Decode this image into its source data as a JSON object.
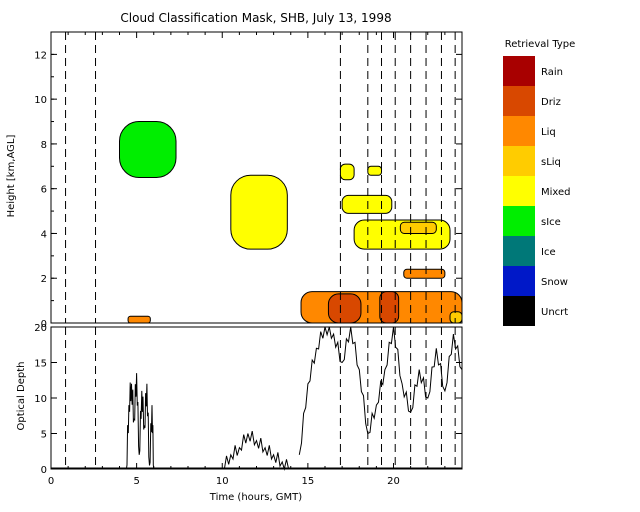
{
  "chart_data": [
    {
      "type": "heatmap",
      "title": "Cloud Classification Mask, SHB, July 13, 1998",
      "ylabel": "Height [km,AGL]",
      "xlim": [
        0,
        24
      ],
      "ylim": [
        0,
        13
      ],
      "yticks": [
        "0",
        "2",
        "4",
        "6",
        "8",
        "10",
        "12"
      ],
      "dashed_lines_x": [
        0.85,
        2.6,
        16.9,
        18.5,
        19.3,
        20.1,
        21.0,
        21.9,
        22.8,
        23.6
      ],
      "legend": {
        "title": "Retrieval Type",
        "placement": "right",
        "entries": [
          {
            "label": "Rain",
            "color": "#a80000"
          },
          {
            "label": "Driz",
            "color": "#d84800"
          },
          {
            "label": "Liq",
            "color": "#ff8800"
          },
          {
            "label": "sLiq",
            "color": "#ffcc00"
          },
          {
            "label": "Mixed",
            "color": "#ffff00"
          },
          {
            "label": "sIce",
            "color": "#00ee00"
          },
          {
            "label": "Ice",
            "color": "#007878"
          },
          {
            "label": "Snow",
            "color": "#0018c8"
          },
          {
            "label": "Uncrt",
            "color": "#000000"
          }
        ]
      },
      "regions": [
        {
          "class": "sIce",
          "t": [
            4.0,
            7.3
          ],
          "h": [
            6.5,
            9.0
          ]
        },
        {
          "class": "Mixed",
          "t": [
            10.5,
            13.8
          ],
          "h": [
            3.3,
            6.6
          ]
        },
        {
          "class": "Mixed",
          "t": [
            16.9,
            17.7
          ],
          "h": [
            6.4,
            7.1
          ]
        },
        {
          "class": "Mixed",
          "t": [
            18.5,
            19.3
          ],
          "h": [
            6.6,
            7.0
          ]
        },
        {
          "class": "Mixed",
          "t": [
            17.0,
            19.9
          ],
          "h": [
            4.9,
            5.7
          ]
        },
        {
          "class": "Mixed",
          "t": [
            17.7,
            23.3
          ],
          "h": [
            3.3,
            4.6
          ]
        },
        {
          "class": "sLiq",
          "t": [
            20.4,
            22.5
          ],
          "h": [
            4.0,
            4.5
          ]
        },
        {
          "class": "Liq",
          "t": [
            20.6,
            23.0
          ],
          "h": [
            2.0,
            2.4
          ]
        },
        {
          "class": "Liq",
          "t": [
            14.6,
            24.0
          ],
          "h": [
            0.0,
            1.4
          ]
        },
        {
          "class": "Driz",
          "t": [
            16.2,
            18.1
          ],
          "h": [
            0.0,
            1.3
          ]
        },
        {
          "class": "Driz",
          "t": [
            19.2,
            20.3
          ],
          "h": [
            0.0,
            1.4
          ]
        },
        {
          "class": "Liq",
          "t": [
            4.5,
            5.8
          ],
          "h": [
            0.0,
            0.3
          ]
        },
        {
          "class": "sLiq",
          "t": [
            23.3,
            24.0
          ],
          "h": [
            0.0,
            0.5
          ]
        }
      ]
    },
    {
      "type": "line",
      "xlabel": "Time (hours, GMT)",
      "ylabel": "Optical Depth",
      "xlim": [
        0,
        24
      ],
      "ylim": [
        0,
        20
      ],
      "xticks": [
        "0",
        "5",
        "10",
        "15",
        "20"
      ],
      "yticks": [
        "0",
        "5",
        "10",
        "15",
        "20"
      ],
      "dashed_lines_x": [
        0.85,
        2.6,
        16.9,
        18.5,
        19.3,
        20.1,
        21.0,
        21.9,
        22.8,
        23.6
      ],
      "series": [
        {
          "x": [
            4.4,
            4.55,
            4.7,
            4.85,
            5.0,
            5.15,
            5.3,
            5.45,
            5.6,
            5.75,
            5.9,
            6.0
          ],
          "y": [
            0,
            9,
            12,
            7,
            13.5,
            2,
            11,
            6,
            12,
            0.5,
            9,
            0
          ]
        },
        {
          "x": [
            10.0,
            10.5,
            11.0,
            11.5,
            12.0,
            12.5,
            13.0,
            13.5,
            14.0
          ],
          "y": [
            0,
            2,
            3,
            5,
            4,
            3,
            2,
            1,
            0
          ]
        },
        {
          "x": [
            14.5,
            15.0,
            15.5,
            16.0,
            16.5,
            17.0,
            17.5,
            18.0,
            18.5,
            19.0,
            19.5,
            20.0,
            20.5,
            21.0,
            21.5,
            22.0,
            22.5,
            23.0,
            23.5,
            24.0
          ],
          "y": [
            2,
            12,
            17,
            20,
            19,
            15,
            20,
            14,
            5,
            9,
            14,
            20,
            12,
            8,
            14,
            10,
            17,
            11,
            19,
            14
          ]
        }
      ]
    }
  ]
}
